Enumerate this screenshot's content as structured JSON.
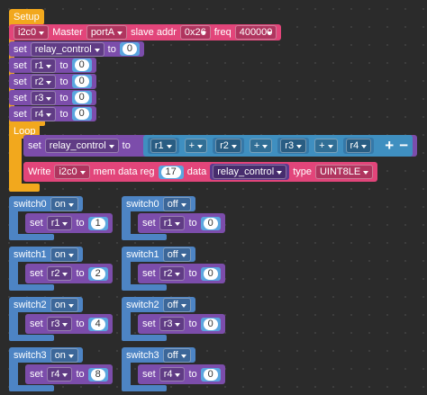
{
  "setup": {
    "label": "Setup",
    "i2c": [
      "i2c0",
      "Master",
      "portA",
      "slave addr",
      "0x26",
      "freq",
      400000
    ],
    "sets": [
      [
        "set",
        "relay_control",
        "to",
        0
      ],
      [
        "set",
        "r1",
        "to",
        0
      ],
      [
        "set",
        "r2",
        "to",
        0
      ],
      [
        "set",
        "r3",
        "to",
        0
      ],
      [
        "set",
        "r4",
        "to",
        0
      ]
    ]
  },
  "loop": {
    "label": "Loop",
    "sum": [
      "set",
      "relay_control",
      "to",
      "r1",
      "+",
      "r2",
      "+",
      "r3",
      "+",
      "r4",
      "+",
      "−"
    ],
    "write": [
      "Write",
      "i2c0",
      "mem data reg",
      17,
      "data",
      "relay_control",
      "type",
      "UINT8LE"
    ]
  },
  "switches": [
    {
      "name": "switch0",
      "state": "on",
      "set": "set",
      "var": "r1",
      "to": "to",
      "value": 1
    },
    {
      "name": "switch0",
      "state": "off",
      "set": "set",
      "var": "r1",
      "to": "to",
      "value": 0
    },
    {
      "name": "switch1",
      "state": "on",
      "set": "set",
      "var": "r2",
      "to": "to",
      "value": 2
    },
    {
      "name": "switch1",
      "state": "off",
      "set": "set",
      "var": "r2",
      "to": "to",
      "value": 0
    },
    {
      "name": "switch2",
      "state": "on",
      "set": "set",
      "var": "r3",
      "to": "to",
      "value": 4
    },
    {
      "name": "switch2",
      "state": "off",
      "set": "set",
      "var": "r3",
      "to": "to",
      "value": 0
    },
    {
      "name": "switch3",
      "state": "on",
      "set": "set",
      "var": "r4",
      "to": "to",
      "value": 8
    },
    {
      "name": "switch3",
      "state": "off",
      "set": "set",
      "var": "r4",
      "to": "to",
      "value": 0
    }
  ]
}
